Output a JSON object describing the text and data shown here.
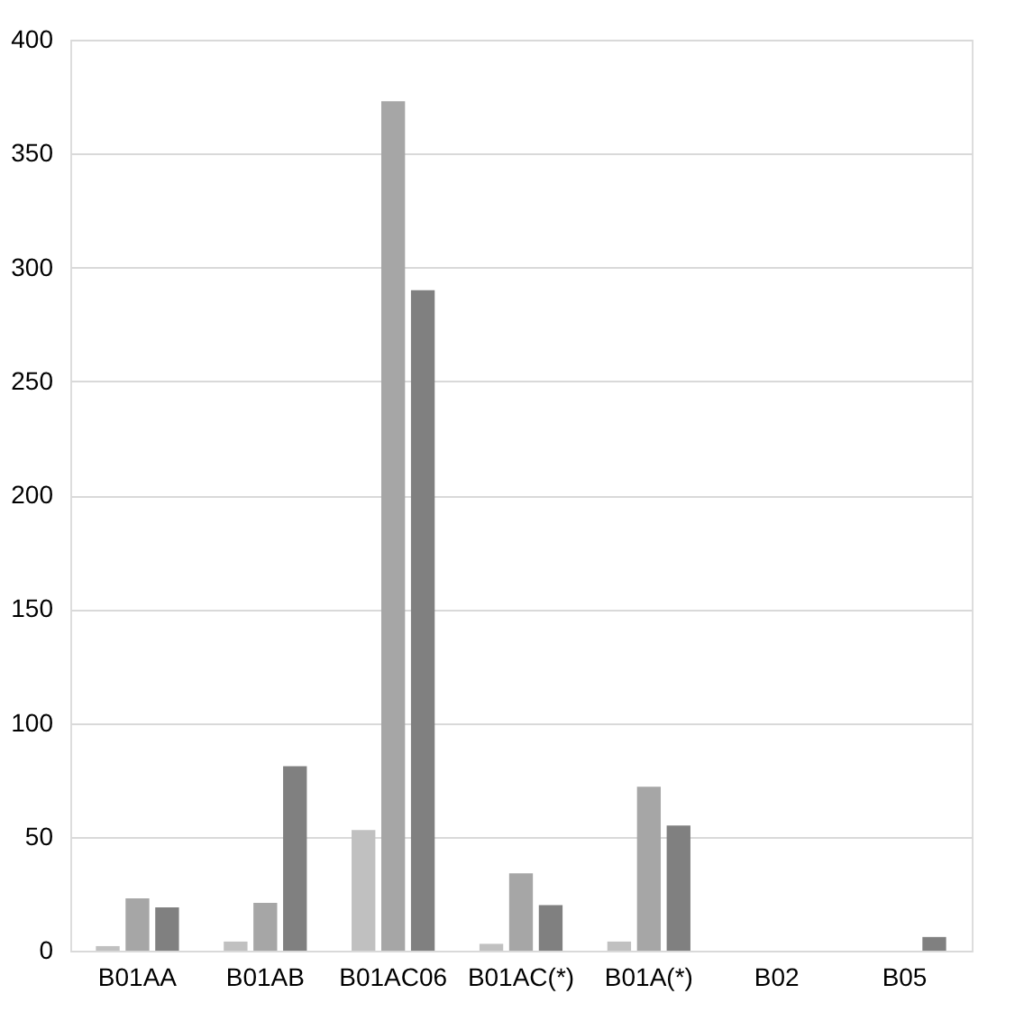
{
  "chart_data": {
    "type": "bar",
    "categories": [
      "B01AA",
      "B01AB",
      "B01AC06",
      "B01AC(*)",
      "B01A(*)",
      "B02",
      "B05"
    ],
    "series": [
      {
        "color": "#c0c0c0",
        "values": [
          2,
          4,
          53,
          3,
          4,
          0,
          0
        ]
      },
      {
        "color": "#a6a6a6",
        "values": [
          23,
          21,
          373,
          34,
          72,
          0,
          0
        ]
      },
      {
        "color": "#808080",
        "values": [
          19,
          81,
          290,
          20,
          55,
          0,
          6
        ]
      }
    ],
    "ylim": [
      0,
      400
    ],
    "yticks": [
      0,
      50,
      100,
      150,
      200,
      250,
      300,
      350,
      400
    ],
    "grid": "y",
    "legend": false
  }
}
